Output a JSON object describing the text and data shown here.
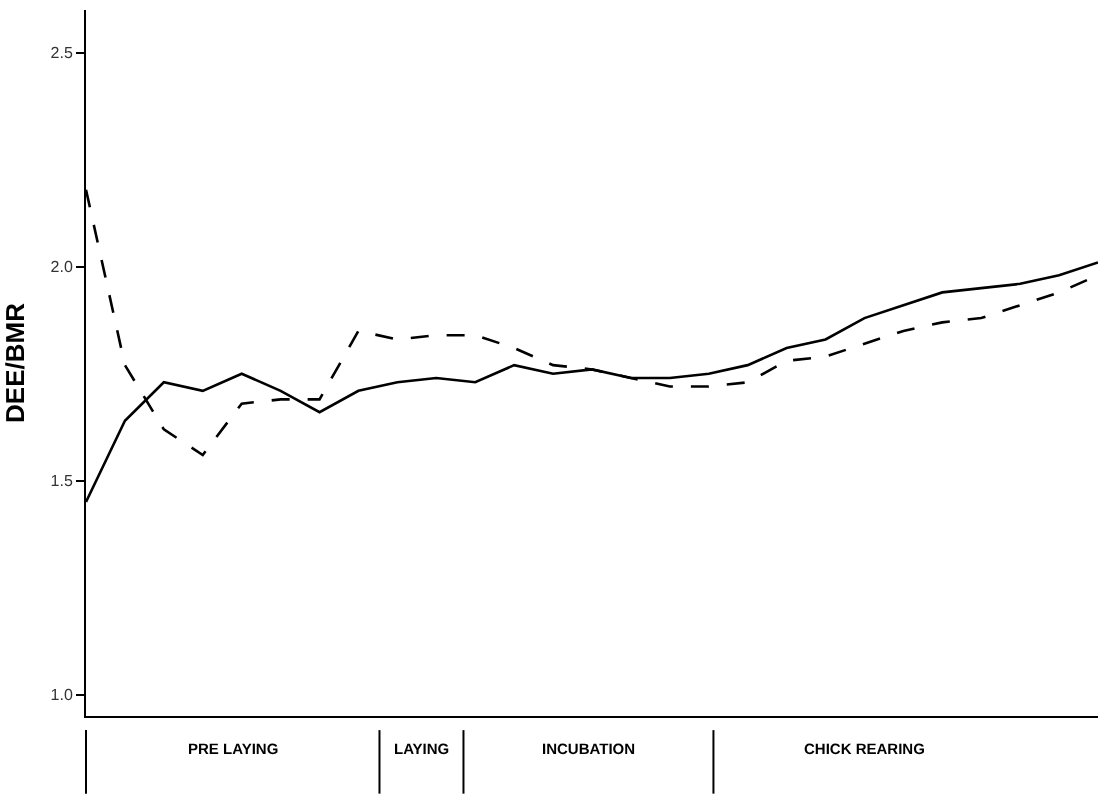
{
  "chart_data": {
    "type": "line",
    "ylabel": "DEE/BMR",
    "categories": [
      null,
      null,
      null,
      null,
      null,
      null,
      null,
      null,
      null,
      null,
      null,
      null,
      null,
      null,
      null,
      null,
      null,
      null,
      null,
      null,
      null,
      null,
      null,
      null,
      null,
      null,
      null
    ],
    "series": [
      {
        "color": "#000000",
        "line_style": "solid",
        "values": [
          1.45,
          1.64,
          1.73,
          1.71,
          1.75,
          1.71,
          1.66,
          1.71,
          1.73,
          1.74,
          1.73,
          1.77,
          1.75,
          1.76,
          1.74,
          1.74,
          1.75,
          1.77,
          1.81,
          1.83,
          1.88,
          1.91,
          1.94,
          1.95,
          1.96,
          1.98,
          2.01
        ]
      },
      {
        "color": "#000000",
        "line_style": "dashed",
        "values": [
          2.18,
          1.77,
          1.62,
          1.56,
          1.68,
          1.69,
          1.69,
          1.85,
          1.83,
          1.84,
          1.84,
          1.81,
          1.77,
          1.76,
          1.74,
          1.72,
          1.72,
          1.73,
          1.78,
          1.79,
          1.82,
          1.85,
          1.87,
          1.88,
          1.91,
          1.94,
          1.98
        ]
      }
    ],
    "ylim": [
      0.95,
      2.6
    ],
    "yticks": [
      {
        "value": 1.0,
        "label": "1.0"
      },
      {
        "value": 1.5,
        "label": "1.5"
      },
      {
        "value": 2.0,
        "label": "2.0"
      },
      {
        "value": 2.5,
        "label": "2.5"
      }
    ],
    "tick_labels": "y",
    "marker": "none",
    "annotations": [
      "PRE LAYING",
      "LAYING",
      "INCUBATION",
      "CHICK REARING"
    ]
  }
}
